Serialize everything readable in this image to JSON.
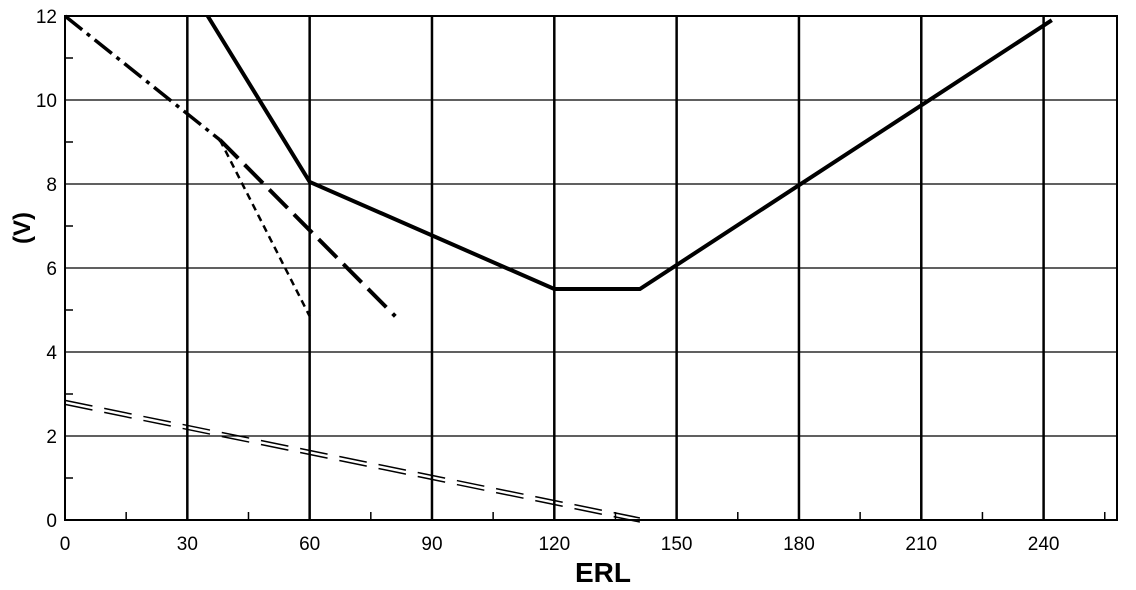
{
  "chart_data": {
    "type": "line",
    "title": "",
    "xlabel": "ERL",
    "ylabel": "(V)",
    "xlim": [
      0,
      258
    ],
    "ylim": [
      0,
      12
    ],
    "x_ticks": [
      0,
      30,
      60,
      90,
      120,
      150,
      180,
      210,
      240
    ],
    "y_ticks": [
      0,
      2,
      4,
      6,
      8,
      10,
      12
    ],
    "grid": true,
    "legend": "none",
    "series": [
      {
        "style": "solid-thick",
        "color": "#000000",
        "points": [
          [
            35,
            12
          ],
          [
            60,
            8.05
          ],
          [
            120,
            5.5
          ],
          [
            141,
            5.5
          ],
          [
            242,
            11.9
          ]
        ]
      },
      {
        "style": "dash-dot",
        "color": "#000000",
        "points": [
          [
            0,
            12
          ],
          [
            38,
            9.05
          ]
        ]
      },
      {
        "style": "long-dash",
        "color": "#000000",
        "points": [
          [
            38,
            9.05
          ],
          [
            81,
            4.85
          ]
        ]
      },
      {
        "style": "short-dash",
        "color": "#000000",
        "points": [
          [
            38,
            9.05
          ],
          [
            60,
            4.85
          ]
        ]
      },
      {
        "style": "double-dash",
        "color": "#000000",
        "points": [
          [
            0,
            2.8
          ],
          [
            141,
            0
          ]
        ]
      }
    ]
  }
}
